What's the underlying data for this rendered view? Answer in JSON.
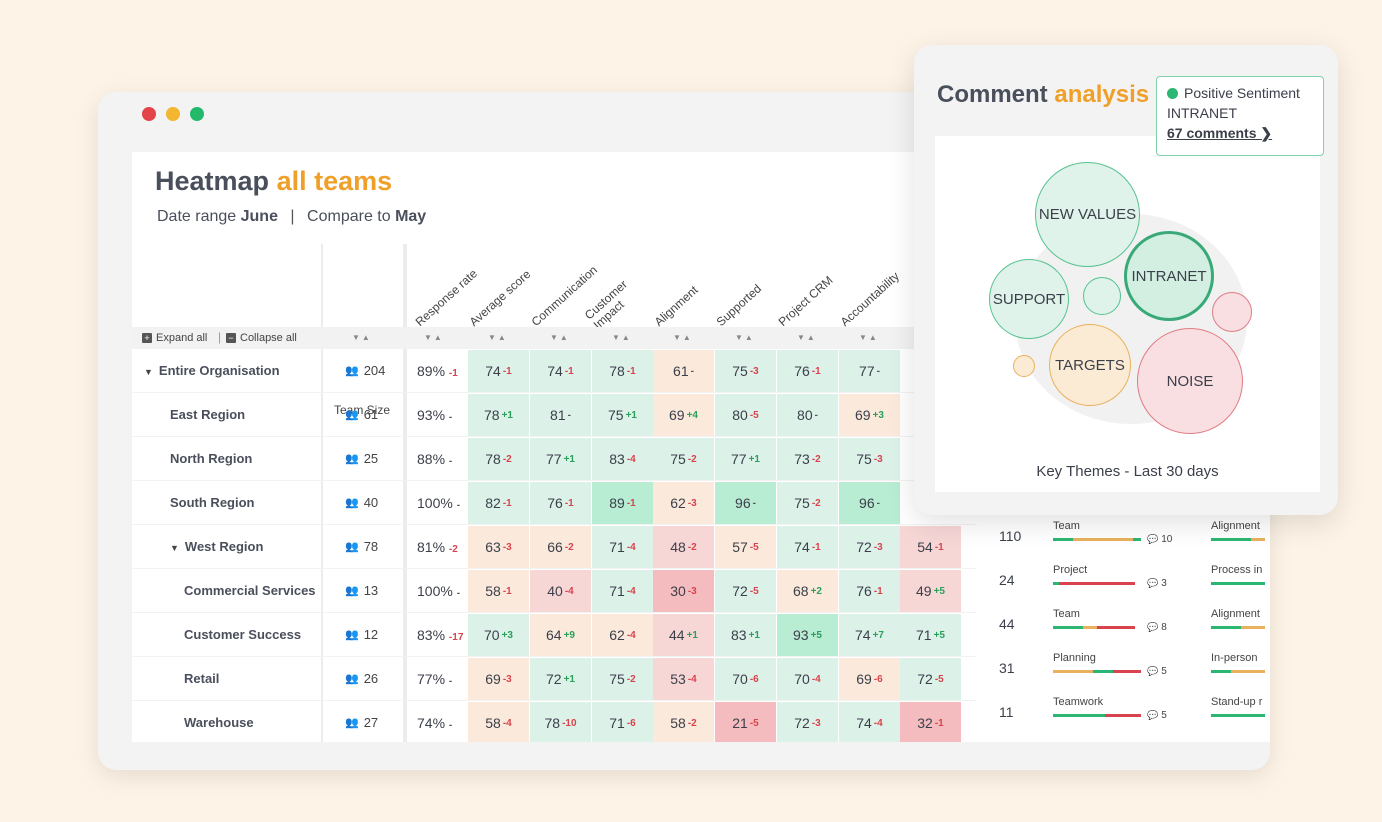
{
  "window": {
    "dots": [
      "#e4434a",
      "#f2b631",
      "#23b96b"
    ]
  },
  "heatmap": {
    "title_main": "Heatmap",
    "title_accent": "all teams",
    "date_label": "Date range",
    "date_value": "June",
    "compare_label": "Compare to",
    "compare_value": "May",
    "team_size_header": "Team Size",
    "expand_all": "Expand all",
    "collapse_all": "Collapse all",
    "columns": [
      "Response rate",
      "Average score",
      "Communication",
      "Customer Impact",
      "Alignment",
      "Supported",
      "Project CRM",
      "Accountability"
    ],
    "rows": [
      {
        "label": "Entire Organisation",
        "size": "204",
        "rate": "89%",
        "rate_d": "-1",
        "level": 0,
        "caret": "▼",
        "cells": [
          {
            "v": "74",
            "d": "-1"
          },
          {
            "v": "74",
            "d": "-1"
          },
          {
            "v": "78",
            "d": "-1"
          },
          {
            "v": "61",
            "d": "-"
          },
          {
            "v": "75",
            "d": "-3"
          },
          {
            "v": "76",
            "d": "-1"
          },
          {
            "v": "77",
            "d": "-"
          },
          {
            "v": "",
            "d": ""
          }
        ]
      },
      {
        "label": "East Region",
        "size": "61",
        "rate": "93%",
        "rate_d": "-",
        "level": 1,
        "caret": "",
        "cells": [
          {
            "v": "78",
            "d": "+1"
          },
          {
            "v": "81",
            "d": "-"
          },
          {
            "v": "75",
            "d": "+1"
          },
          {
            "v": "69",
            "d": "+4"
          },
          {
            "v": "80",
            "d": "-5"
          },
          {
            "v": "80",
            "d": "-"
          },
          {
            "v": "69",
            "d": "+3"
          },
          {
            "v": "",
            "d": ""
          }
        ]
      },
      {
        "label": "North Region",
        "size": "25",
        "rate": "88%",
        "rate_d": "-",
        "level": 1,
        "caret": "",
        "cells": [
          {
            "v": "78",
            "d": "-2"
          },
          {
            "v": "77",
            "d": "+1"
          },
          {
            "v": "83",
            "d": "-4"
          },
          {
            "v": "75",
            "d": "-2"
          },
          {
            "v": "77",
            "d": "+1"
          },
          {
            "v": "73",
            "d": "-2"
          },
          {
            "v": "75",
            "d": "-3"
          },
          {
            "v": "",
            "d": ""
          }
        ]
      },
      {
        "label": "South Region",
        "size": "40",
        "rate": "100%",
        "rate_d": "-",
        "level": 1,
        "caret": "",
        "cells": [
          {
            "v": "82",
            "d": "-1"
          },
          {
            "v": "76",
            "d": "-1"
          },
          {
            "v": "89",
            "d": "-1"
          },
          {
            "v": "62",
            "d": "-3"
          },
          {
            "v": "96",
            "d": "-"
          },
          {
            "v": "75",
            "d": "-2"
          },
          {
            "v": "96",
            "d": "-"
          },
          {
            "v": "",
            "d": ""
          }
        ]
      },
      {
        "label": "West Region",
        "size": "78",
        "rate": "81%",
        "rate_d": "-2",
        "level": 1,
        "caret": "▼",
        "cells": [
          {
            "v": "63",
            "d": "-3"
          },
          {
            "v": "66",
            "d": "-2"
          },
          {
            "v": "71",
            "d": "-4"
          },
          {
            "v": "48",
            "d": "-2"
          },
          {
            "v": "57",
            "d": "-5"
          },
          {
            "v": "74",
            "d": "-1"
          },
          {
            "v": "72",
            "d": "-3"
          },
          {
            "v": "54",
            "d": "-1"
          }
        ]
      },
      {
        "label": "Commercial Services",
        "size": "13",
        "rate": "100%",
        "rate_d": "-",
        "level": 2,
        "caret": "",
        "cells": [
          {
            "v": "58",
            "d": "-1"
          },
          {
            "v": "40",
            "d": "-4"
          },
          {
            "v": "71",
            "d": "-4"
          },
          {
            "v": "30",
            "d": "-3"
          },
          {
            "v": "72",
            "d": "-5"
          },
          {
            "v": "68",
            "d": "+2"
          },
          {
            "v": "76",
            "d": "-1"
          },
          {
            "v": "49",
            "d": "+5"
          }
        ]
      },
      {
        "label": "Customer Success",
        "size": "12",
        "rate": "83%",
        "rate_d": "-17",
        "level": 2,
        "caret": "",
        "cells": [
          {
            "v": "70",
            "d": "+3"
          },
          {
            "v": "64",
            "d": "+9"
          },
          {
            "v": "62",
            "d": "-4"
          },
          {
            "v": "44",
            "d": "+1"
          },
          {
            "v": "83",
            "d": "+1"
          },
          {
            "v": "93",
            "d": "+5"
          },
          {
            "v": "74",
            "d": "+7"
          },
          {
            "v": "71",
            "d": "+5"
          }
        ]
      },
      {
        "label": "Retail",
        "size": "26",
        "rate": "77%",
        "rate_d": "-",
        "level": 2,
        "caret": "",
        "cells": [
          {
            "v": "69",
            "d": "-3"
          },
          {
            "v": "72",
            "d": "+1"
          },
          {
            "v": "75",
            "d": "-2"
          },
          {
            "v": "53",
            "d": "-4"
          },
          {
            "v": "70",
            "d": "-6"
          },
          {
            "v": "70",
            "d": "-4"
          },
          {
            "v": "69",
            "d": "-6"
          },
          {
            "v": "72",
            "d": "-5"
          }
        ]
      },
      {
        "label": "Warehouse",
        "size": "27",
        "rate": "74%",
        "rate_d": "-",
        "level": 2,
        "caret": "",
        "cells": [
          {
            "v": "58",
            "d": "-4"
          },
          {
            "v": "78",
            "d": "-10"
          },
          {
            "v": "71",
            "d": "-6"
          },
          {
            "v": "58",
            "d": "-2"
          },
          {
            "v": "21",
            "d": "-5"
          },
          {
            "v": "72",
            "d": "-3"
          },
          {
            "v": "74",
            "d": "-4"
          },
          {
            "v": "32",
            "d": "-1"
          }
        ]
      }
    ]
  },
  "side_table": {
    "rows": [
      {
        "num": "110",
        "topic1": "Team",
        "comments": "10",
        "topic2": "Alignment"
      },
      {
        "num": "24",
        "topic1": "Project",
        "comments": "3",
        "topic2": "Process in"
      },
      {
        "num": "44",
        "topic1": "Team",
        "comments": "8",
        "topic2": "Alignment"
      },
      {
        "num": "31",
        "topic1": "Planning",
        "comments": "5",
        "topic2": "In-person"
      },
      {
        "num": "11",
        "topic1": "Teamwork",
        "comments": "5",
        "topic2": "Stand-up r"
      }
    ]
  },
  "comment_card": {
    "title_main": "Comment",
    "title_accent": "analysis",
    "bubbles": [
      "NEW VALUES",
      "SUPPORT",
      "INTRANET",
      "TARGETS",
      "NOISE"
    ],
    "tooltip": {
      "sentiment": "Positive Sentiment",
      "theme": "INTRANET",
      "link": "67 comments ❯"
    },
    "caption": "Key Themes - Last 30 days"
  }
}
